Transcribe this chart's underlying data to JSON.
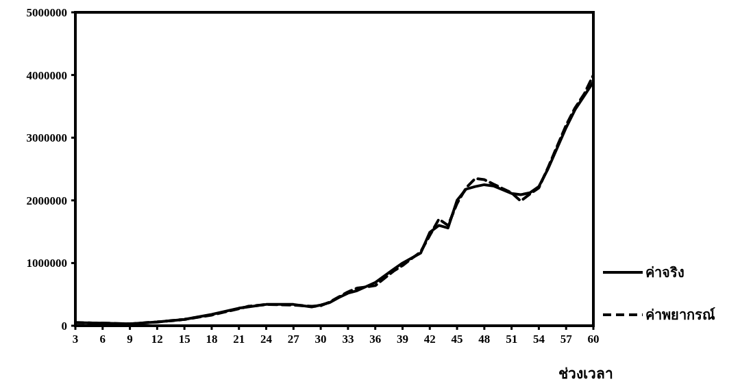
{
  "chart_data": {
    "type": "line",
    "xlabel": "ช่วงเวลา",
    "x": [
      3,
      6,
      9,
      12,
      15,
      18,
      21,
      22,
      24,
      27,
      29,
      30,
      31,
      32,
      33,
      34,
      36,
      38,
      39,
      41,
      42,
      43,
      44,
      45,
      46,
      47,
      48,
      49,
      51,
      52,
      53,
      54,
      55,
      57,
      58,
      59,
      60
    ],
    "series": [
      {
        "name": "ค่าจริง",
        "color": "#000000",
        "line_style": "solid",
        "values": [
          50000,
          40000,
          30000,
          60000,
          100000,
          180000,
          280000,
          300000,
          340000,
          340000,
          300000,
          330000,
          370000,
          450000,
          520000,
          560000,
          690000,
          900000,
          1000000,
          1160000,
          1490000,
          1600000,
          1560000,
          2000000,
          2180000,
          2220000,
          2250000,
          2230000,
          2110000,
          2090000,
          2120000,
          2220000,
          2500000,
          3160000,
          3450000,
          3670000,
          3890000
        ]
      },
      {
        "name": "ค่าพยากรณ์",
        "color": "#000000",
        "line_style": "dashed",
        "values": [
          50000,
          40000,
          30000,
          60000,
          100000,
          170000,
          270000,
          310000,
          340000,
          330000,
          310000,
          320000,
          380000,
          460000,
          540000,
          600000,
          640000,
          870000,
          960000,
          1180000,
          1440000,
          1700000,
          1600000,
          1950000,
          2200000,
          2350000,
          2330000,
          2260000,
          2120000,
          1990000,
          2100000,
          2200000,
          2520000,
          3200000,
          3480000,
          3700000,
          4000000
        ]
      }
    ],
    "xlim": [
      3,
      60
    ],
    "xticks": [
      3,
      6,
      9,
      12,
      15,
      18,
      21,
      24,
      27,
      30,
      33,
      36,
      39,
      42,
      45,
      48,
      51,
      54,
      57,
      60
    ],
    "ylim": [
      0,
      5000000
    ],
    "yticks": [
      0,
      1000000,
      2000000,
      3000000,
      4000000,
      5000000
    ],
    "grid": false,
    "legend": "right"
  }
}
